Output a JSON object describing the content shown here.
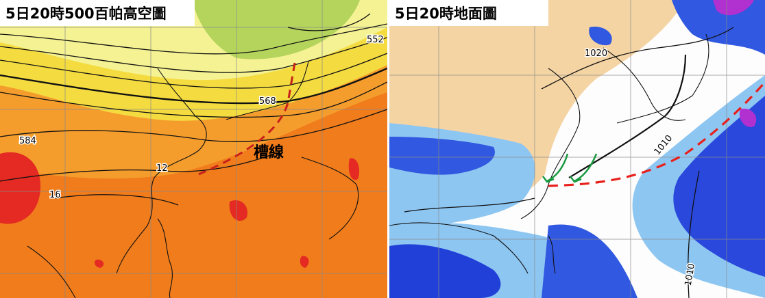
{
  "panels": [
    {
      "title": "5日20時500百帕高空圖",
      "contour_labels": [
        "552",
        "568",
        "584",
        "12",
        "16"
      ],
      "annotation": "槽線"
    },
    {
      "title": "5日20時地面圖",
      "contour_labels": [
        "1020",
        "1010",
        "1010"
      ]
    }
  ]
}
